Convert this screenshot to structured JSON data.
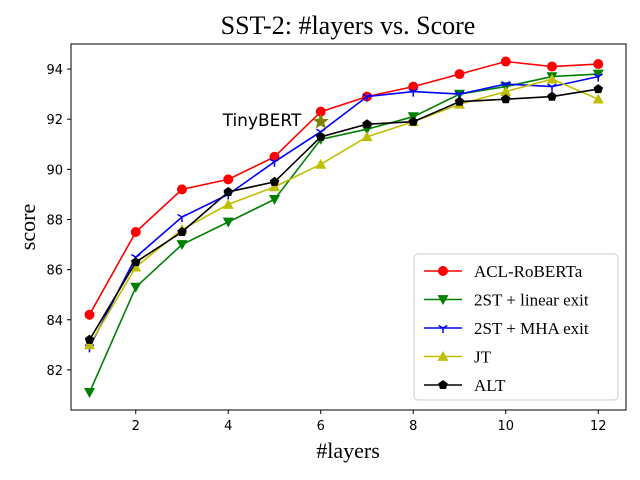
{
  "chart_data": {
    "type": "line",
    "title": "SST-2: #layers vs. Score",
    "xlabel": "#layers",
    "ylabel": "score",
    "xlim": [
      0.6,
      12.6
    ],
    "ylim": [
      80.4,
      95.0
    ],
    "xticks": [
      2,
      4,
      6,
      8,
      10,
      12
    ],
    "yticks": [
      82,
      84,
      86,
      88,
      90,
      92,
      94
    ],
    "grid": false,
    "legend_position": "lower-right",
    "annotation": {
      "text": "TinyBERT",
      "x": 6,
      "y": 91.9
    },
    "x": [
      1,
      2,
      3,
      4,
      5,
      6,
      7,
      8,
      9,
      10,
      11,
      12
    ],
    "series": [
      {
        "name": "ACL-RoBERTa",
        "color": "#ff0000",
        "marker": "circle",
        "values": [
          84.2,
          87.5,
          89.2,
          89.6,
          90.5,
          92.3,
          92.9,
          93.3,
          93.8,
          94.3,
          94.1,
          94.2
        ]
      },
      {
        "name": "2ST + linear exit",
        "color": "#008000",
        "marker": "triangle-down",
        "values": [
          81.1,
          85.3,
          87.0,
          87.9,
          88.8,
          91.2,
          91.6,
          92.1,
          93.0,
          93.3,
          93.7,
          93.8
        ]
      },
      {
        "name": "2ST + MHA exit",
        "color": "#0000ff",
        "marker": "tri-down",
        "values": [
          82.9,
          86.5,
          88.1,
          89.0,
          90.3,
          91.5,
          92.9,
          93.1,
          93.0,
          93.4,
          93.3,
          93.7
        ]
      },
      {
        "name": "JT",
        "color": "#bfbf00",
        "marker": "triangle-up",
        "values": [
          83.0,
          86.1,
          87.6,
          88.6,
          89.3,
          90.2,
          91.3,
          91.9,
          92.6,
          93.1,
          93.6,
          92.8
        ]
      },
      {
        "name": "ALT",
        "color": "#000000",
        "marker": "pentagon",
        "values": [
          83.2,
          86.3,
          87.5,
          89.1,
          89.5,
          91.3,
          91.8,
          91.9,
          92.7,
          92.8,
          92.9,
          93.2
        ]
      }
    ]
  }
}
